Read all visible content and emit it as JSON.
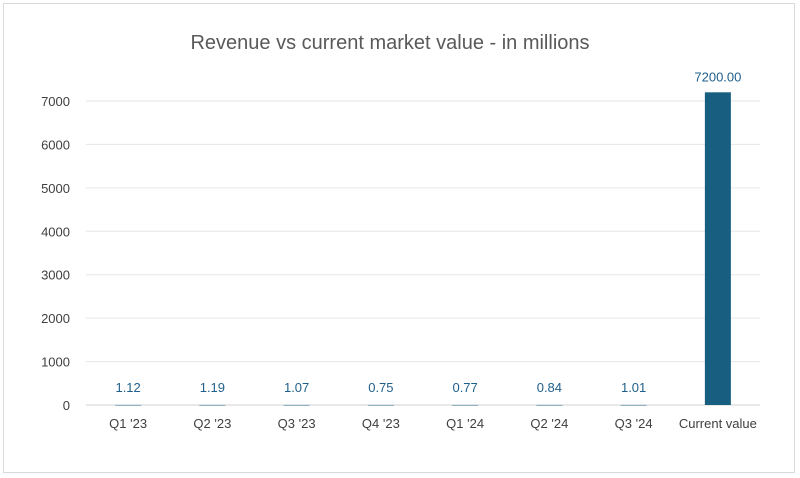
{
  "chart_data": {
    "type": "bar",
    "title": "Revenue vs current market value - in millions",
    "categories": [
      "Q1 '23",
      "Q2 '23",
      "Q3 '23",
      "Q4 '23",
      "Q1 '24",
      "Q2 '24",
      "Q3 '24",
      "Current value"
    ],
    "values": [
      1.12,
      1.19,
      1.07,
      0.75,
      0.77,
      0.84,
      1.01,
      7200.0
    ],
    "data_labels": [
      "1.12",
      "1.19",
      "1.07",
      "0.75",
      "0.77",
      "0.84",
      "1.01",
      "7200.00"
    ],
    "yticks": [
      0,
      1000,
      2000,
      3000,
      4000,
      5000,
      6000,
      7000
    ],
    "ylim": [
      0,
      7200
    ],
    "xlabel": "",
    "ylabel": "",
    "grid": true,
    "legend": "none",
    "bar_color": "#175e80",
    "label_color": "#1f5f8b"
  }
}
